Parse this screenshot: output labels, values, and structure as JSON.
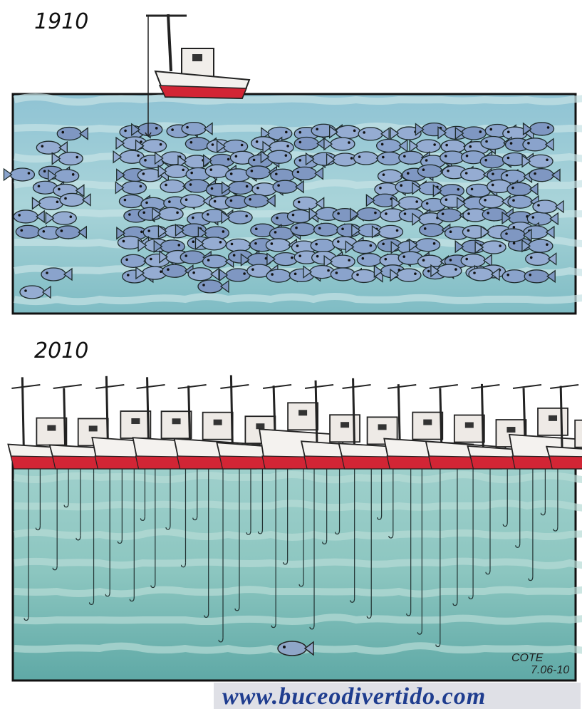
{
  "panels": [
    {
      "label": "1910"
    },
    {
      "label": "2010"
    }
  ],
  "signature": {
    "name": "COTE",
    "date": "7.06-10"
  },
  "watermark": "www.buceodivertido.com"
}
